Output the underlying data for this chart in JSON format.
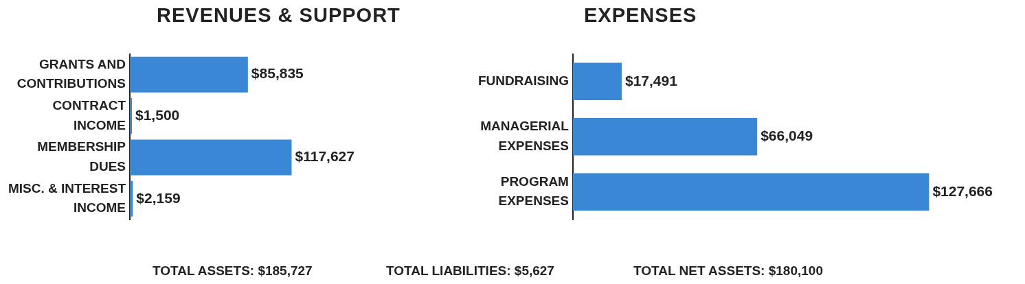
{
  "chart_data": [
    {
      "type": "bar",
      "orientation": "horizontal",
      "title": "REVENUES & SUPPORT",
      "categories": [
        "GRANTS AND CONTRIBUTIONS",
        "CONTRACT INCOME",
        "MEMBERSHIP DUES",
        "MISC. & INTEREST INCOME"
      ],
      "values": [
        85835,
        1500,
        117627,
        2159
      ],
      "color": "#3a87d6",
      "value_labels": [
        "$85,835",
        "$1,500",
        "$117,627",
        "$2,159"
      ],
      "grid": false,
      "legend": false,
      "tick_labels": "y",
      "annotations": [
        "TOTAL ASSETS: $185,727",
        "TOTAL LIABILITIES: $5,627",
        "TOTAL NET ASSETS: $180,100"
      ]
    },
    {
      "type": "bar",
      "orientation": "horizontal",
      "title": "EXPENSES",
      "categories": [
        "FUNDRAISING",
        "MANAGERIAL EXPENSES",
        "PROGRAM EXPENSES"
      ],
      "values": [
        17491,
        66049,
        127666
      ],
      "color": "#3a87d6",
      "value_labels": [
        "$17,491",
        "$66,049",
        "$127,666"
      ],
      "grid": false,
      "legend": false,
      "tick_labels": "y"
    }
  ]
}
